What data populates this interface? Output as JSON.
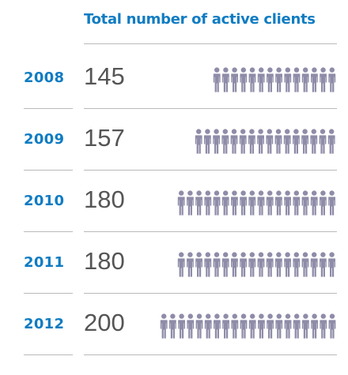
{
  "chart_data": {
    "type": "bar",
    "title": "Total number of active clients",
    "categories": [
      "2008",
      "2009",
      "2010",
      "2011",
      "2012"
    ],
    "values": [
      145,
      157,
      180,
      180,
      200
    ],
    "value_labels": [
      "145",
      "157",
      "180",
      "180",
      "200"
    ],
    "icons_per_row": [
      14,
      16,
      18,
      18,
      20
    ],
    "icon": "person-icon",
    "colors": {
      "accent": "#0f7cc2",
      "value_text": "#555555",
      "icon": "#8e8ca8",
      "rule": "#b9b9b9"
    }
  }
}
